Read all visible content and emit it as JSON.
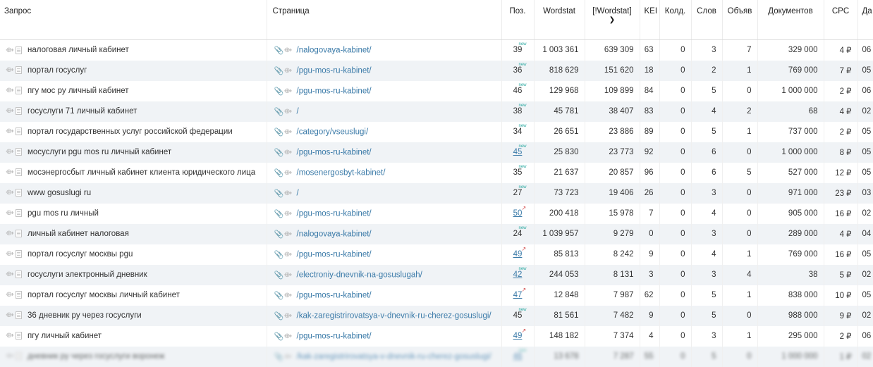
{
  "columns": {
    "query": "Запрос",
    "page": "Страница",
    "pos": "Поз.",
    "wordstat": "Wordstat",
    "ex_wordstat": "[!Wordstat]",
    "kei": "KEI",
    "kold": "Колд.",
    "slov": "Слов",
    "obyav": "Объяв",
    "docs": "Документов",
    "cpc": "CPC",
    "date": "Да"
  },
  "badges": {
    "new": "new"
  },
  "rows": [
    {
      "query": "налоговая личный кабинет",
      "page": "/nalogovaya-kabinet/",
      "pos": "39",
      "ws": "1 003 361",
      "ews": "639 309",
      "kei": "63",
      "kold": "0",
      "slov": "3",
      "obj": "7",
      "docs": "329 000",
      "cpc": "4 ₽",
      "date": "06"
    },
    {
      "query": "портал госуслуг",
      "page": "/pgu-mos-ru-kabinet/",
      "pos": "36",
      "ws": "818 629",
      "ews": "151 620",
      "kei": "18",
      "kold": "0",
      "slov": "2",
      "obj": "1",
      "docs": "769 000",
      "cpc": "7 ₽",
      "date": "05"
    },
    {
      "query": "пгу мос ру личный кабинет",
      "page": "/pgu-mos-ru-kabinet/",
      "pos": "46",
      "ws": "129 968",
      "ews": "109 899",
      "kei": "84",
      "kold": "0",
      "slov": "5",
      "obj": "0",
      "docs": "1 000 000",
      "cpc": "2 ₽",
      "date": "06"
    },
    {
      "query": "госуслуги 71 личный кабинет",
      "page": "/",
      "pos": "38",
      "ws": "45 781",
      "ews": "38 407",
      "kei": "83",
      "kold": "0",
      "slov": "4",
      "obj": "2",
      "docs": "68",
      "cpc": "4 ₽",
      "date": "02"
    },
    {
      "query": "портал государственных услуг российской федерации",
      "page": "/category/vseuslugi/",
      "pos": "34",
      "ws": "26 651",
      "ews": "23 886",
      "kei": "89",
      "kold": "0",
      "slov": "5",
      "obj": "1",
      "docs": "737 000",
      "cpc": "2 ₽",
      "date": "05"
    },
    {
      "query": "мосуслуги pgu mos ru личный кабинет",
      "page": "/pgu-mos-ru-kabinet/",
      "pos": "45",
      "ws": "25 830",
      "ews": "23 773",
      "kei": "92",
      "kold": "0",
      "slov": "6",
      "obj": "0",
      "docs": "1 000 000",
      "cpc": "8 ₽",
      "date": "05"
    },
    {
      "query": "мосэнергосбыт личный кабинет клиента юридического лица",
      "page": "/mosenergosbyt-kabinet/",
      "pos": "35",
      "ws": "21 637",
      "ews": "20 857",
      "kei": "96",
      "kold": "0",
      "slov": "6",
      "obj": "5",
      "docs": "527 000",
      "cpc": "12 ₽",
      "date": "05"
    },
    {
      "query": "www gosuslugi ru",
      "page": "/",
      "pos": "27",
      "ws": "73 723",
      "ews": "19 406",
      "kei": "26",
      "kold": "0",
      "slov": "3",
      "obj": "0",
      "docs": "971 000",
      "cpc": "23 ₽",
      "date": "03"
    },
    {
      "query": "pgu mos ru личный",
      "page": "/pgu-mos-ru-kabinet/",
      "pos": "50",
      "ws": "200 418",
      "ews": "15 978",
      "kei": "7",
      "kold": "0",
      "slov": "4",
      "obj": "0",
      "docs": "905 000",
      "cpc": "16 ₽",
      "date": "02"
    },
    {
      "query": "личный кабинет налоговая",
      "page": "/nalogovaya-kabinet/",
      "pos": "24",
      "ws": "1 039 957",
      "ews": "9 279",
      "kei": "0",
      "kold": "0",
      "slov": "3",
      "obj": "0",
      "docs": "289 000",
      "cpc": "4 ₽",
      "date": "04"
    },
    {
      "query": "портал госуслуг москвы pgu",
      "page": "/pgu-mos-ru-kabinet/",
      "pos": "49",
      "ws": "85 813",
      "ews": "8 242",
      "kei": "9",
      "kold": "0",
      "slov": "4",
      "obj": "1",
      "docs": "769 000",
      "cpc": "16 ₽",
      "date": "05"
    },
    {
      "query": "госуслуги электронный дневник",
      "page": "/electroniy-dnevnik-na-gosuslugah/",
      "pos": "42",
      "ws": "244 053",
      "ews": "8 131",
      "kei": "3",
      "kold": "0",
      "slov": "3",
      "obj": "4",
      "docs": "38",
      "cpc": "5 ₽",
      "date": "02"
    },
    {
      "query": "портал госуслуг москвы личный кабинет",
      "page": "/pgu-mos-ru-kabinet/",
      "pos": "47",
      "ws": "12 848",
      "ews": "7 987",
      "kei": "62",
      "kold": "0",
      "slov": "5",
      "obj": "1",
      "docs": "838 000",
      "cpc": "10 ₽",
      "date": "05"
    },
    {
      "query": "36 дневник ру через госуслуги",
      "page": "/kak-zaregistrirovatsya-v-dnevnik-ru-cherez-gosuslugi/",
      "pos": "45",
      "ws": "81 561",
      "ews": "7 482",
      "kei": "9",
      "kold": "0",
      "slov": "5",
      "obj": "0",
      "docs": "988 000",
      "cpc": "9 ₽",
      "date": "02"
    },
    {
      "query": "пгу личный кабинет",
      "page": "/pgu-mos-ru-kabinet/",
      "pos": "49",
      "ws": "148 182",
      "ews": "7 374",
      "kei": "4",
      "kold": "0",
      "slov": "3",
      "obj": "1",
      "docs": "295 000",
      "cpc": "2 ₽",
      "date": "06"
    },
    {
      "query": "дневник ру через госуслуги воронеж",
      "page": "/kak-zaregistrirovatsya-v-dnevnik-ru-cherez-gosuslugi/",
      "pos": "46",
      "ws": "13 678",
      "ews": "7 287",
      "kei": "55",
      "kold": "0",
      "slov": "5",
      "obj": "0",
      "docs": "1 000 000",
      "cpc": "1 ₽",
      "date": "02"
    }
  ]
}
